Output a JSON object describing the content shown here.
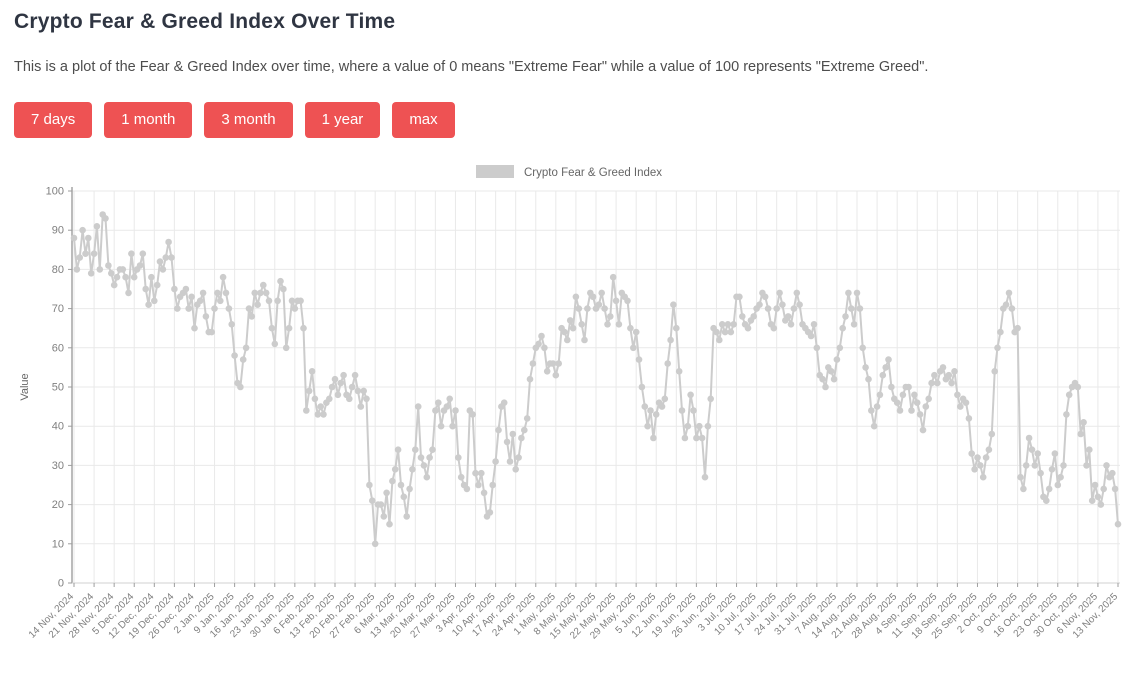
{
  "page": {
    "title": "Crypto Fear & Greed Index Over Time",
    "description": "This is a plot of the Fear & Greed Index over time, where a value of 0 means \"Extreme Fear\" while a value of 100 represents \"Extreme Greed\"."
  },
  "buttons": [
    {
      "label": "7 days"
    },
    {
      "label": "1 month"
    },
    {
      "label": "3 month"
    },
    {
      "label": "1 year"
    },
    {
      "label": "max"
    }
  ],
  "colors": {
    "button": "#ee5253",
    "series": "#cccccc",
    "grid": "#e9e9e9",
    "axis_y": "#9e9e9e",
    "axis_x": "#d0d0d0",
    "tick_text": "#7f7f7f",
    "label_text": "#666666"
  },
  "chart_data": {
    "type": "line",
    "title": "",
    "xlabel": "",
    "ylabel": "Value",
    "ylim": [
      0,
      100
    ],
    "grid": true,
    "marker": "circle",
    "legend_position": "top-center",
    "legend": "Crypto Fear & Greed Index",
    "y_ticks": [
      0,
      10,
      20,
      30,
      40,
      50,
      60,
      70,
      80,
      90,
      100
    ],
    "x_tick_every": 7,
    "x_tick_labels": [
      "14 Nov, 2024",
      "21 Nov, 2024",
      "28 Nov, 2024",
      "5 Dec, 2024",
      "12 Dec, 2024",
      "19 Dec, 2024",
      "26 Dec, 2024",
      "2 Jan, 2025",
      "9 Jan, 2025",
      "16 Jan, 2025",
      "23 Jan, 2025",
      "30 Jan, 2025",
      "6 Feb, 2025",
      "13 Feb, 2025",
      "20 Feb, 2025",
      "27 Feb, 2025",
      "6 Mar, 2025",
      "13 Mar, 2025",
      "20 Mar, 2025",
      "27 Mar, 2025",
      "3 Apr, 2025",
      "10 Apr, 2025",
      "17 Apr, 2025",
      "24 Apr, 2025",
      "1 May, 2025",
      "8 May, 2025",
      "15 May, 2025",
      "22 May, 2025",
      "29 May, 2025",
      "5 Jun, 2025",
      "12 Jun, 2025",
      "19 Jun, 2025",
      "26 Jun, 2025",
      "3 Jul, 2025",
      "10 Jul, 2025",
      "17 Jul, 2025",
      "24 Jul, 2025",
      "31 Jul, 2025",
      "7 Aug, 2025",
      "14 Aug, 2025",
      "21 Aug, 2025",
      "28 Aug, 2025",
      "4 Sep, 2025",
      "11 Sep, 2025",
      "18 Sep, 2025",
      "25 Sep, 2025",
      "2 Oct, 2025",
      "9 Oct, 2025",
      "16 Oct, 2025",
      "23 Oct, 2025",
      "30 Oct, 2025",
      "6 Nov, 2025",
      "13 Nov, 2025"
    ],
    "x_start": "14 Nov, 2024",
    "x_end": "13 Nov, 2025",
    "series": [
      {
        "name": "Crypto Fear & Greed Index",
        "color": "#cccccc",
        "values": [
          88,
          80,
          83,
          90,
          84,
          88,
          79,
          84,
          91,
          80,
          94,
          93,
          81,
          79,
          76,
          78,
          80,
          80,
          78,
          74,
          84,
          78,
          80,
          81,
          84,
          75,
          71,
          78,
          72,
          76,
          82,
          80,
          83,
          87,
          83,
          75,
          70,
          73,
          74,
          75,
          70,
          73,
          65,
          71,
          72,
          74,
          68,
          64,
          64,
          70,
          74,
          72,
          78,
          74,
          70,
          66,
          58,
          51,
          50,
          57,
          60,
          70,
          68,
          74,
          71,
          74,
          76,
          74,
          72,
          65,
          61,
          72,
          77,
          75,
          60,
          65,
          72,
          70,
          72,
          72,
          65,
          44,
          49,
          54,
          47,
          43,
          45,
          43,
          46,
          47,
          50,
          52,
          48,
          51,
          53,
          48,
          47,
          50,
          53,
          49,
          45,
          49,
          47,
          25,
          21,
          10,
          20,
          20,
          17,
          23,
          15,
          26,
          29,
          34,
          25,
          22,
          17,
          24,
          29,
          34,
          45,
          32,
          30,
          27,
          32,
          34,
          44,
          46,
          40,
          44,
          45,
          47,
          40,
          44,
          32,
          27,
          25,
          24,
          44,
          43,
          28,
          25,
          28,
          23,
          17,
          18,
          25,
          31,
          39,
          45,
          46,
          36,
          31,
          38,
          29,
          32,
          37,
          39,
          42,
          52,
          56,
          60,
          61,
          63,
          60,
          54,
          56,
          56,
          53,
          56,
          65,
          64,
          62,
          67,
          65,
          73,
          70,
          66,
          62,
          70,
          74,
          73,
          70,
          71,
          74,
          70,
          66,
          68,
          78,
          72,
          66,
          74,
          73,
          72,
          65,
          60,
          64,
          57,
          50,
          45,
          40,
          44,
          37,
          43,
          46,
          45,
          47,
          56,
          62,
          71,
          65,
          54,
          44,
          37,
          40,
          48,
          44,
          37,
          40,
          37,
          27,
          40,
          47,
          65,
          64,
          62,
          66,
          64,
          66,
          64,
          66,
          73,
          73,
          68,
          66,
          65,
          67,
          68,
          70,
          71,
          74,
          73,
          70,
          66,
          65,
          70,
          74,
          71,
          67,
          68,
          66,
          70,
          74,
          71,
          66,
          65,
          64,
          63,
          66,
          60,
          53,
          52,
          50,
          55,
          54,
          52,
          57,
          60,
          65,
          68,
          74,
          70,
          66,
          74,
          70,
          60,
          55,
          52,
          44,
          40,
          45,
          48,
          53,
          55,
          57,
          50,
          47,
          46,
          44,
          48,
          50,
          50,
          44,
          48,
          46,
          43,
          39,
          45,
          47,
          51,
          53,
          51,
          54,
          55,
          52,
          53,
          51,
          54,
          48,
          45,
          47,
          46,
          42,
          33,
          29,
          32,
          30,
          27,
          32,
          34,
          38,
          54,
          60,
          64,
          70,
          71,
          74,
          70,
          64,
          65,
          27,
          24,
          30,
          37,
          34,
          30,
          33,
          28,
          22,
          21,
          24,
          29,
          33,
          25,
          27,
          30,
          43,
          48,
          50,
          51,
          50,
          38,
          41,
          30,
          34,
          21,
          25,
          22,
          20,
          24,
          30,
          27,
          28,
          24,
          15
        ]
      }
    ]
  }
}
